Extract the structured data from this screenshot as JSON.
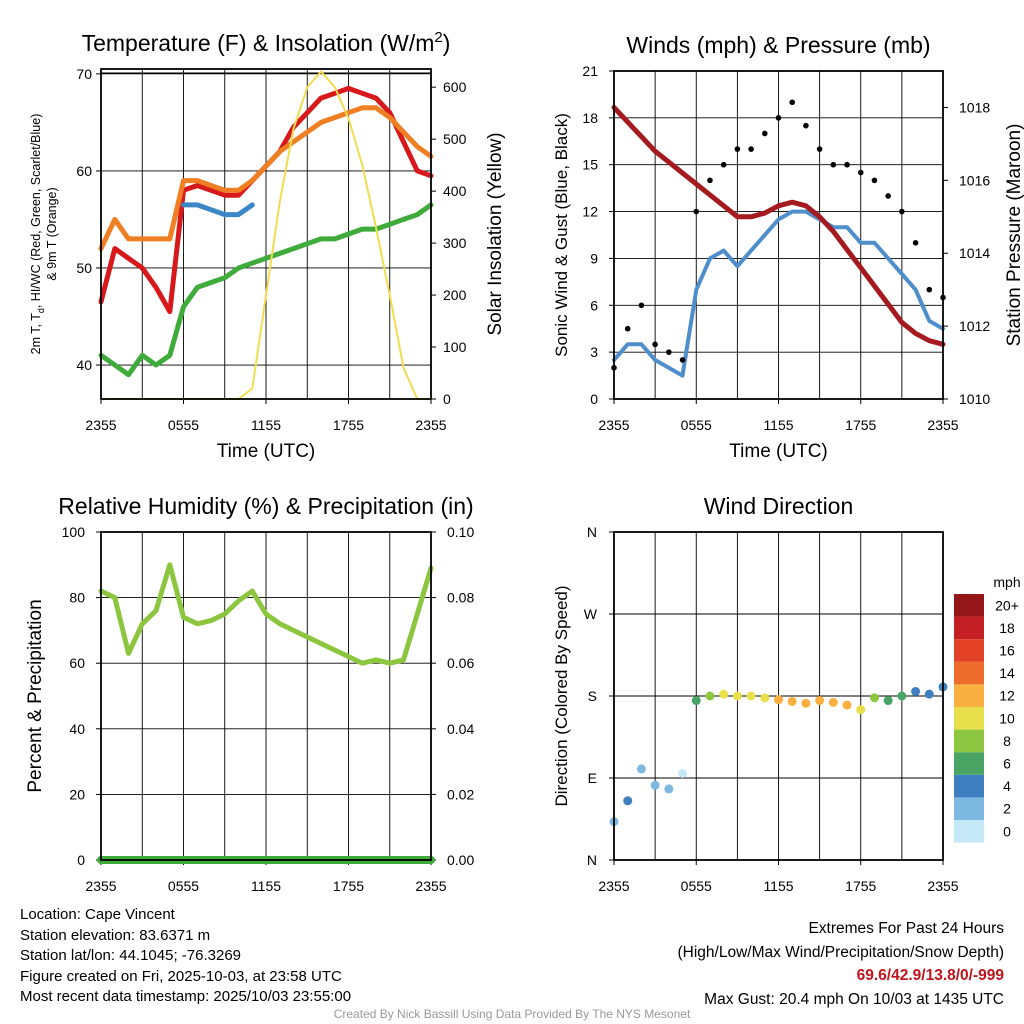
{
  "chart_data": [
    {
      "type": "line",
      "title": "Temperature (F) & Insolation (W/m²)",
      "xlabel": "Time (UTC)",
      "ylabel": "2m T, Td, HI/WC (Red, Green, Scarlet/Blue) & 9m T (Orange)",
      "ylabel_line1": "2m T, T",
      "ylabel_sub": "d",
      "ylabel_line1_rest": ", HI/WC (Red, Green, Scarlet/Blue)",
      "ylabel_line2": "& 9m T (Orange)",
      "ylabel_right": "Solar Insolation (Yellow)",
      "x_ticks": [
        "2355",
        "0555",
        "1155",
        "1755",
        "2355"
      ],
      "ylim": [
        36.5,
        70.5
      ],
      "y_ticks": [
        40,
        50,
        60,
        70
      ],
      "ylim_right": [
        0,
        635
      ],
      "y_ticks_right": [
        0,
        100,
        200,
        300,
        400,
        500,
        600
      ],
      "x": [
        0,
        1,
        2,
        3,
        4,
        5,
        6,
        7,
        8,
        9,
        10,
        11,
        12,
        13,
        14,
        15,
        16,
        17,
        18,
        19,
        20,
        21,
        22,
        23,
        24
      ],
      "series": [
        {
          "name": "2m T",
          "color": "#d7191c",
          "values": [
            46.5,
            52,
            51,
            50,
            48,
            45.5,
            58,
            58.5,
            58,
            57.5,
            57.5,
            59,
            60.5,
            62,
            64.5,
            66,
            67.5,
            68,
            68.5,
            68,
            67.5,
            66,
            63,
            60,
            59.5
          ]
        },
        {
          "name": "9m T",
          "color": "#f07f24",
          "values": [
            52,
            55,
            53,
            53,
            53,
            53,
            59,
            59,
            58.5,
            58,
            58,
            59,
            60.5,
            62,
            63,
            64,
            65,
            65.5,
            66,
            66.5,
            66.5,
            65.5,
            64,
            62.5,
            61.5
          ]
        },
        {
          "name": "2m Td",
          "color": "#3fab3a",
          "values": [
            41,
            40,
            39,
            41,
            40,
            41,
            46,
            48,
            48.5,
            49,
            50,
            50.5,
            51,
            51.5,
            52,
            52.5,
            53,
            53,
            53.5,
            54,
            54,
            54.5,
            55,
            55.5,
            56.5
          ]
        },
        {
          "name": "HI/WC",
          "color": "#3b86c6",
          "values": [
            null,
            null,
            null,
            null,
            null,
            null,
            56.5,
            56.5,
            56,
            55.5,
            55.5,
            56.5,
            null,
            null,
            null,
            null,
            null,
            null,
            null,
            null,
            null,
            null,
            null,
            null,
            null
          ]
        },
        {
          "name": "Solar Insolation",
          "color": "#f2dc50",
          "axis": "right",
          "values": [
            0,
            0,
            0,
            0,
            0,
            0,
            0,
            0,
            0,
            0,
            0,
            20,
            200,
            380,
            520,
            600,
            630,
            600,
            540,
            450,
            330,
            200,
            60,
            0,
            0
          ]
        }
      ]
    },
    {
      "type": "line",
      "title": "Winds (mph) & Pressure (mb)",
      "xlabel": "Time (UTC)",
      "ylabel": "Sonic Wind & Gust (Blue, Black)",
      "ylabel_right": "Station Pressure (Maroon)",
      "x_ticks": [
        "2355",
        "0555",
        "1155",
        "1755",
        "2355"
      ],
      "ylim": [
        0,
        21
      ],
      "y_ticks": [
        0,
        3,
        6,
        9,
        12,
        15,
        18,
        21
      ],
      "ylim_right": [
        1010,
        1019
      ],
      "y_ticks_right": [
        1010,
        1012,
        1014,
        1016,
        1018
      ],
      "x": [
        0,
        1,
        2,
        3,
        4,
        5,
        6,
        7,
        8,
        9,
        10,
        11,
        12,
        13,
        14,
        15,
        16,
        17,
        18,
        19,
        20,
        21,
        22,
        23,
        24
      ],
      "series": [
        {
          "name": "Sonic Wind",
          "color": "#4e8fcb",
          "values": [
            2.5,
            3.5,
            3.5,
            2.5,
            2,
            1.5,
            7,
            9,
            9.5,
            8.5,
            9.5,
            10.5,
            11.5,
            12,
            12,
            11.5,
            11,
            11,
            10,
            10,
            9,
            8,
            7,
            5,
            4.5
          ]
        },
        {
          "name": "Gust",
          "color": "#000000",
          "marker": "dot",
          "values": [
            2,
            4.5,
            6,
            3.5,
            3,
            2.5,
            12,
            14,
            15,
            16,
            16,
            17,
            18,
            19,
            17.5,
            16,
            15,
            15,
            14.5,
            14,
            13,
            12,
            10,
            7,
            6.5
          ]
        },
        {
          "name": "Station Pressure",
          "color": "#a51a1f",
          "axis": "right",
          "values": [
            1018,
            1017.6,
            1017.2,
            1016.8,
            1016.5,
            1016.2,
            1015.9,
            1015.6,
            1015.3,
            1015,
            1015,
            1015.1,
            1015.3,
            1015.4,
            1015.3,
            1015,
            1014.6,
            1014.1,
            1013.6,
            1013.1,
            1012.6,
            1012.1,
            1011.8,
            1011.6,
            1011.5
          ]
        }
      ]
    },
    {
      "type": "line",
      "title": "Relative Humidity (%) & Precipitation (in)",
      "xlabel": "",
      "ylabel": "Percent & Precipitation",
      "x_ticks": [
        "2355",
        "0555",
        "1155",
        "1755",
        "2355"
      ],
      "ylim": [
        0,
        100
      ],
      "y_ticks": [
        0,
        20,
        40,
        60,
        80,
        100
      ],
      "ylim_right": [
        0,
        0.1
      ],
      "y_ticks_right": [
        "0.00",
        "0.02",
        "0.04",
        "0.06",
        "0.08",
        "0.10"
      ],
      "x": [
        0,
        1,
        2,
        3,
        4,
        5,
        6,
        7,
        8,
        9,
        10,
        11,
        12,
        13,
        14,
        15,
        16,
        17,
        18,
        19,
        20,
        21,
        22,
        23,
        24
      ],
      "series": [
        {
          "name": "Relative Humidity",
          "color": "#8cc63e",
          "values": [
            82,
            80,
            63,
            72,
            76,
            90,
            74,
            72,
            73,
            75,
            79,
            82,
            75,
            72,
            70,
            68,
            66,
            64,
            62,
            60,
            61,
            60,
            61,
            75,
            89
          ]
        },
        {
          "name": "Precipitation",
          "color": "#3fab3a",
          "axis": "right",
          "values": [
            0,
            0,
            0,
            0,
            0,
            0,
            0,
            0,
            0,
            0,
            0,
            0,
            0,
            0,
            0,
            0,
            0,
            0,
            0,
            0,
            0,
            0,
            0,
            0,
            0
          ]
        }
      ]
    },
    {
      "type": "scatter",
      "title": "Wind Direction",
      "xlabel": "",
      "ylabel": "Direction (Colored By Speed)",
      "x_ticks": [
        "2355",
        "0555",
        "1155",
        "1755",
        "2355"
      ],
      "y_ticks": [
        "N",
        "E",
        "S",
        "W",
        "N"
      ],
      "ylim": [
        0,
        360
      ],
      "colorbar_unit": "mph",
      "colorbar_labels": [
        "0",
        "2",
        "4",
        "6",
        "8",
        "10",
        "12",
        "14",
        "16",
        "18",
        "20+"
      ],
      "colorbar_colors": [
        "#c6e9f7",
        "#7db8e1",
        "#3d7fc0",
        "#4aa564",
        "#8dc640",
        "#e8e04b",
        "#f9b040",
        "#ef6d2c",
        "#e34227",
        "#c41f25",
        "#941619"
      ],
      "x": [
        0,
        1,
        2,
        3,
        4,
        5,
        6,
        7,
        8,
        9,
        10,
        11,
        12,
        13,
        14,
        15,
        16,
        17,
        18,
        19,
        20,
        21,
        22,
        23,
        24
      ],
      "values": [
        42,
        65,
        100,
        82,
        78,
        95,
        175,
        180,
        182,
        180,
        180,
        178,
        176,
        174,
        172,
        175,
        173,
        170,
        165,
        178,
        175,
        180,
        185,
        182,
        190
      ],
      "speeds": [
        3,
        4,
        3,
        2,
        2,
        1,
        6,
        9,
        10,
        11,
        10,
        11,
        12,
        13,
        12,
        12,
        13,
        12,
        11,
        8,
        7,
        6,
        5,
        4,
        4
      ]
    }
  ],
  "station": {
    "location": "Location: Cape Vincent",
    "elevation": "Station elevation: 83.6371 m",
    "latlon": "Station lat/lon: 44.1045; -76.3269",
    "created": "Figure created on Fri, 2025-10-03, at 23:58 UTC",
    "recent": "Most recent data timestamp: 2025/10/03 23:55:00"
  },
  "extremes": {
    "title": "Extremes For Past 24 Hours",
    "subtitle": "(High/Low/Max Wind/Precipitation/Snow Depth)",
    "values": "69.6/42.9/13.8/0/-999",
    "gust": "Max Gust: 20.4 mph On 10/03 at 1435 UTC"
  },
  "credit": "Created By Nick Bassill Using Data Provided By The NYS Mesonet"
}
